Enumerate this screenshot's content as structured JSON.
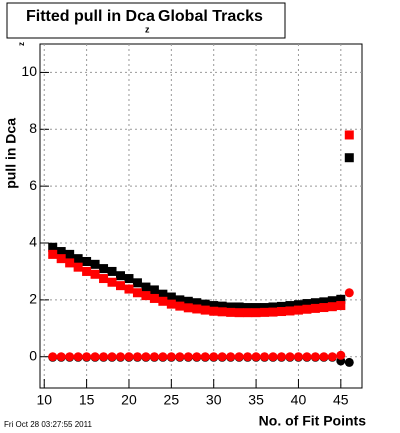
{
  "chart_data": {
    "type": "scatter",
    "title": "Fitted pull in Dca",
    "title_subscript": "z",
    "title_rest": "Global Tracks",
    "x_label": "No. of Fit Points",
    "y_label": "pull in Dca",
    "y_label_subscript": "z",
    "timestamp": "Fri Oct 28 03:27:55 2011",
    "x": [
      11,
      12,
      13,
      14,
      15,
      16,
      17,
      18,
      19,
      20,
      21,
      22,
      23,
      24,
      25,
      26,
      27,
      28,
      29,
      30,
      31,
      32,
      33,
      34,
      35,
      36,
      37,
      38,
      39,
      40,
      41,
      42,
      43,
      44,
      45,
      46
    ],
    "series": [
      {
        "color": "#000000",
        "marker": "square",
        "values": [
          3.85,
          3.7,
          3.6,
          3.45,
          3.35,
          3.25,
          3.1,
          3.0,
          2.85,
          2.75,
          2.6,
          2.45,
          2.35,
          2.2,
          2.1,
          2.0,
          1.95,
          1.9,
          1.85,
          1.8,
          1.78,
          1.75,
          1.75,
          1.73,
          1.73,
          1.73,
          1.75,
          1.77,
          1.8,
          1.83,
          1.87,
          1.9,
          1.93,
          1.97,
          2.02,
          7.0
        ]
      },
      {
        "color": "#ff0000",
        "marker": "square",
        "values": [
          3.6,
          3.45,
          3.3,
          3.15,
          3.0,
          2.9,
          2.75,
          2.62,
          2.5,
          2.38,
          2.25,
          2.15,
          2.05,
          1.95,
          1.85,
          1.78,
          1.72,
          1.68,
          1.64,
          1.6,
          1.58,
          1.56,
          1.55,
          1.55,
          1.55,
          1.56,
          1.57,
          1.59,
          1.61,
          1.64,
          1.67,
          1.7,
          1.73,
          1.76,
          1.8,
          7.8
        ]
      },
      {
        "color": "#000000",
        "marker": "circle",
        "values": [
          -0.02,
          -0.02,
          -0.02,
          -0.02,
          -0.02,
          -0.02,
          -0.02,
          -0.02,
          -0.02,
          -0.02,
          -0.02,
          -0.02,
          -0.02,
          -0.02,
          -0.02,
          -0.02,
          -0.02,
          -0.02,
          -0.02,
          -0.02,
          -0.02,
          -0.02,
          -0.02,
          -0.02,
          -0.02,
          -0.02,
          -0.02,
          -0.02,
          -0.02,
          -0.02,
          -0.02,
          -0.02,
          -0.02,
          -0.02,
          -0.15,
          -0.2
        ]
      },
      {
        "color": "#ff0000",
        "marker": "circle",
        "values": [
          0.0,
          0.0,
          0.0,
          0.0,
          0.0,
          0.0,
          0.0,
          0.0,
          0.0,
          0.0,
          0.0,
          0.0,
          0.0,
          0.0,
          0.0,
          0.0,
          0.0,
          0.0,
          0.0,
          0.0,
          0.0,
          0.0,
          0.0,
          0.0,
          0.0,
          0.0,
          0.0,
          0.0,
          0.0,
          0.0,
          0.0,
          0.0,
          0.0,
          0.0,
          0.05,
          2.25
        ]
      }
    ],
    "xlim": [
      9.5,
      47.5
    ],
    "xticks": [
      10,
      15,
      20,
      25,
      30,
      35,
      40,
      45
    ],
    "ylim": [
      -1.1,
      11
    ],
    "yticks": [
      0,
      2,
      4,
      6,
      8,
      10
    ],
    "grid": true
  }
}
